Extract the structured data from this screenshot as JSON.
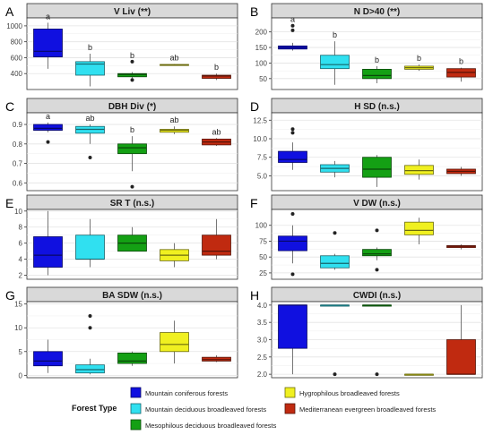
{
  "legend": {
    "title": "Forest Type",
    "position": "bottom",
    "items": [
      {
        "label": "Mountain coniferous forests",
        "color": "#1010e0"
      },
      {
        "label": "Mountain deciduous broadleaved forests",
        "color": "#30e0f0"
      },
      {
        "label": "Mesophilous deciduous broadleaved forests",
        "color": "#14a014"
      },
      {
        "label": "Hygrophilous broadleaved forests",
        "color": "#f0f020"
      },
      {
        "label": "Mediterranean evergreen broadleaved forests",
        "color": "#c02a10"
      }
    ]
  },
  "chart_data": [
    {
      "type": "box",
      "letter": "A",
      "title": "V Liv (**)",
      "ylim": [
        200,
        1100
      ],
      "yticks": [
        400,
        600,
        800,
        1000
      ],
      "grid": true,
      "boxes": [
        {
          "min": 460,
          "q1": 610,
          "median": 680,
          "q3": 960,
          "max": 1040,
          "outliers": [],
          "letter": "a"
        },
        {
          "min": 240,
          "q1": 380,
          "median": 520,
          "q3": 550,
          "max": 650,
          "outliers": [],
          "letter": "b"
        },
        {
          "min": 340,
          "q1": 360,
          "median": 390,
          "q3": 400,
          "max": 420,
          "outliers": [
            320,
            550
          ],
          "letter": "b"
        },
        {
          "min": 500,
          "q1": 505,
          "median": 510,
          "q3": 515,
          "max": 520,
          "outliers": [],
          "letter": "ab"
        },
        {
          "min": 320,
          "q1": 340,
          "median": 370,
          "q3": 380,
          "max": 400,
          "outliers": [],
          "letter": "b"
        }
      ]
    },
    {
      "type": "box",
      "letter": "B",
      "title": "N D>40 (**)",
      "ylim": [
        15,
        245
      ],
      "yticks": [
        50,
        100,
        150,
        200
      ],
      "grid": true,
      "boxes": [
        {
          "min": 140,
          "q1": 145,
          "median": 150,
          "q3": 155,
          "max": 165,
          "outliers": [
            205,
            220
          ],
          "letter": "a"
        },
        {
          "min": 30,
          "q1": 82,
          "median": 95,
          "q3": 125,
          "max": 170,
          "outliers": [],
          "letter": "b"
        },
        {
          "min": 35,
          "q1": 50,
          "median": 60,
          "q3": 80,
          "max": 90,
          "outliers": [],
          "letter": "b"
        },
        {
          "min": 75,
          "q1": 80,
          "median": 85,
          "q3": 90,
          "max": 95,
          "outliers": [],
          "letter": "b"
        },
        {
          "min": 40,
          "q1": 55,
          "median": 70,
          "q3": 82,
          "max": 85,
          "outliers": [],
          "letter": "b"
        }
      ]
    },
    {
      "type": "box",
      "letter": "C",
      "title": "DBH Div (*)",
      "ylim": [
        0.56,
        0.96
      ],
      "yticks": [
        0.6,
        0.7,
        0.8,
        0.9
      ],
      "grid": true,
      "boxes": [
        {
          "min": 0.86,
          "q1": 0.87,
          "median": 0.88,
          "q3": 0.9,
          "max": 0.91,
          "outliers": [
            0.81
          ],
          "letter": "a"
        },
        {
          "min": 0.8,
          "q1": 0.855,
          "median": 0.875,
          "q3": 0.89,
          "max": 0.9,
          "outliers": [
            0.73
          ],
          "letter": "ab"
        },
        {
          "min": 0.66,
          "q1": 0.75,
          "median": 0.78,
          "q3": 0.8,
          "max": 0.84,
          "outliers": [
            0.58
          ],
          "letter": "b"
        },
        {
          "min": 0.85,
          "q1": 0.86,
          "median": 0.87,
          "q3": 0.875,
          "max": 0.89,
          "outliers": [],
          "letter": "ab"
        },
        {
          "min": 0.79,
          "q1": 0.795,
          "median": 0.81,
          "q3": 0.825,
          "max": 0.83,
          "outliers": [],
          "letter": "ab"
        }
      ]
    },
    {
      "type": "box",
      "letter": "D",
      "title": "H SD (n.s.)",
      "ylim": [
        3,
        13.5
      ],
      "yticks": [
        5.0,
        7.5,
        10.0,
        12.5
      ],
      "tick_decimals": 1,
      "grid": true,
      "boxes": [
        {
          "min": 5.8,
          "q1": 6.8,
          "median": 7.2,
          "q3": 8.3,
          "max": 9.5,
          "outliers": [
            10.8,
            11.3
          ],
          "letter": ""
        },
        {
          "min": 4.8,
          "q1": 5.5,
          "median": 6.0,
          "q3": 6.5,
          "max": 7.0,
          "outliers": [],
          "letter": ""
        },
        {
          "min": 3.5,
          "q1": 4.8,
          "median": 5.9,
          "q3": 7.5,
          "max": 7.8,
          "outliers": [],
          "letter": ""
        },
        {
          "min": 4.5,
          "q1": 5.2,
          "median": 5.7,
          "q3": 6.4,
          "max": 7.2,
          "outliers": [],
          "letter": ""
        },
        {
          "min": 5.0,
          "q1": 5.3,
          "median": 5.6,
          "q3": 5.9,
          "max": 6.2,
          "outliers": [],
          "letter": ""
        }
      ]
    },
    {
      "type": "box",
      "letter": "E",
      "title": "SR T (n.s.)",
      "ylim": [
        1.5,
        10.2
      ],
      "yticks": [
        2,
        4,
        6,
        8,
        10
      ],
      "grid": true,
      "boxes": [
        {
          "min": 2,
          "q1": 3,
          "median": 4.5,
          "q3": 6.8,
          "max": 10,
          "outliers": [],
          "letter": ""
        },
        {
          "min": 3,
          "q1": 4,
          "median": 4,
          "q3": 7,
          "max": 9,
          "outliers": [],
          "letter": ""
        },
        {
          "min": 5,
          "q1": 5,
          "median": 6,
          "q3": 7,
          "max": 8,
          "outliers": [],
          "letter": ""
        },
        {
          "min": 3,
          "q1": 3.8,
          "median": 4.5,
          "q3": 5.2,
          "max": 6,
          "outliers": [],
          "letter": ""
        },
        {
          "min": 4,
          "q1": 4.5,
          "median": 5,
          "q3": 7,
          "max": 9,
          "outliers": [],
          "letter": ""
        }
      ]
    },
    {
      "type": "box",
      "letter": "F",
      "title": "V DW (n.s.)",
      "ylim": [
        15,
        125
      ],
      "yticks": [
        25,
        50,
        75,
        100
      ],
      "grid": true,
      "boxes": [
        {
          "min": 40,
          "q1": 60,
          "median": 75,
          "q3": 83,
          "max": 100,
          "outliers": [
            118,
            23
          ],
          "letter": ""
        },
        {
          "min": 30,
          "q1": 33,
          "median": 40,
          "q3": 52,
          "max": 55,
          "outliers": [
            88
          ],
          "letter": ""
        },
        {
          "min": 45,
          "q1": 52,
          "median": 55,
          "q3": 62,
          "max": 65,
          "outliers": [
            92,
            30
          ],
          "letter": ""
        },
        {
          "min": 70,
          "q1": 85,
          "median": 92,
          "q3": 105,
          "max": 112,
          "outliers": [],
          "letter": ""
        },
        {
          "min": 62,
          "q1": 65,
          "median": 67,
          "q3": 68,
          "max": 70,
          "outliers": [],
          "letter": ""
        }
      ]
    },
    {
      "type": "box",
      "letter": "G",
      "title": "BA SDW (n.s.)",
      "ylim": [
        -0.5,
        15.5
      ],
      "yticks": [
        0,
        5,
        10,
        15
      ],
      "grid": true,
      "boxes": [
        {
          "min": 0.5,
          "q1": 2,
          "median": 3,
          "q3": 5,
          "max": 7.5,
          "outliers": [],
          "letter": ""
        },
        {
          "min": 0.2,
          "q1": 0.5,
          "median": 1.2,
          "q3": 2.2,
          "max": 3.5,
          "outliers": [
            10,
            12.5
          ],
          "letter": ""
        },
        {
          "min": 2,
          "q1": 2.5,
          "median": 3,
          "q3": 4.7,
          "max": 5,
          "outliers": [],
          "letter": ""
        },
        {
          "min": 2.5,
          "q1": 5,
          "median": 6.5,
          "q3": 9,
          "max": 11.5,
          "outliers": [],
          "letter": ""
        },
        {
          "min": 2.8,
          "q1": 3,
          "median": 3.3,
          "q3": 3.8,
          "max": 4.2,
          "outliers": [],
          "letter": ""
        }
      ]
    },
    {
      "type": "box",
      "letter": "H",
      "title": "CWDI (n.s.)",
      "ylim": [
        1.9,
        4.1
      ],
      "yticks": [
        2.0,
        2.5,
        3.0,
        3.5,
        4.0
      ],
      "tick_decimals": 1,
      "grid": true,
      "boxes": [
        {
          "min": 2,
          "q1": 2.75,
          "median": 4,
          "q3": 4,
          "max": 4,
          "outliers": [],
          "letter": ""
        },
        {
          "min": 4,
          "q1": 4,
          "median": 4,
          "q3": 4,
          "max": 4,
          "outliers": [
            2
          ],
          "letter": ""
        },
        {
          "min": 4,
          "q1": 4,
          "median": 4,
          "q3": 4,
          "max": 4,
          "outliers": [
            2
          ],
          "letter": ""
        },
        {
          "min": 2,
          "q1": 2,
          "median": 2,
          "q3": 2,
          "max": 2,
          "outliers": [],
          "letter": ""
        },
        {
          "min": 2,
          "q1": 2,
          "median": 2,
          "q3": 3,
          "max": 4,
          "outliers": [],
          "letter": ""
        }
      ]
    }
  ]
}
